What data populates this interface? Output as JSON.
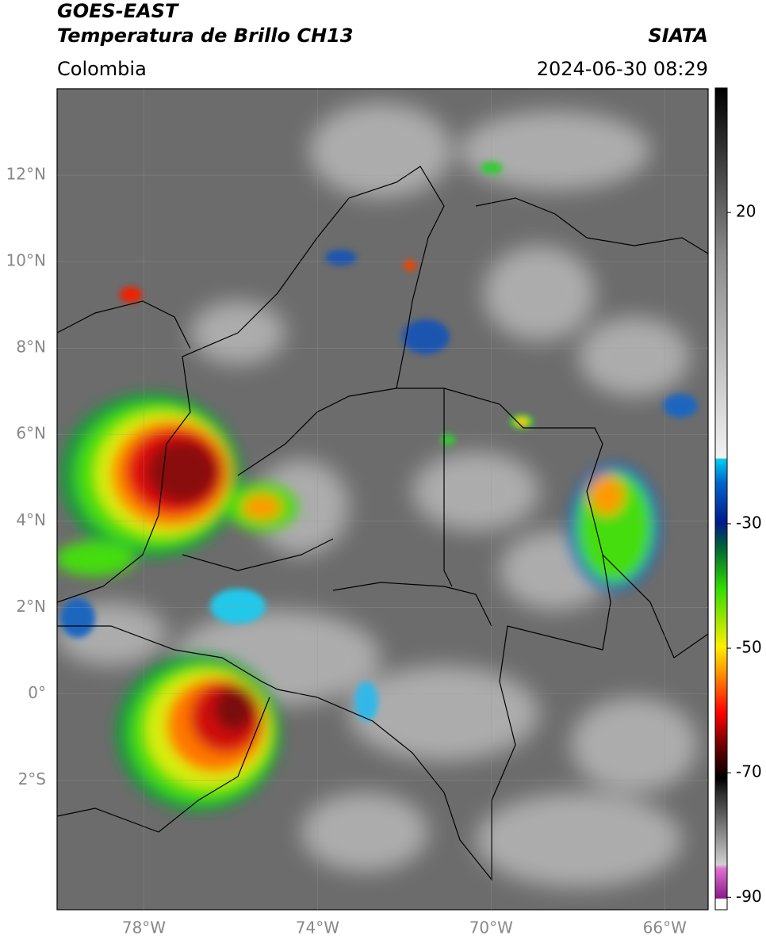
{
  "header": {
    "title": "GOES-EAST",
    "subtitle": "Temperatura de Brillo CH13",
    "source": "SIATA",
    "region": "Colombia",
    "timestamp": "2024-06-30 08:29"
  },
  "map": {
    "xlim": [
      -80,
      -65
    ],
    "ylim": [
      -5,
      14
    ],
    "xticks": [
      {
        "value": -78,
        "label": "78°W"
      },
      {
        "value": -74,
        "label": "74°W"
      },
      {
        "value": -70,
        "label": "70°W"
      },
      {
        "value": -66,
        "label": "66°W"
      }
    ],
    "yticks": [
      {
        "value": 12,
        "label": "12°N"
      },
      {
        "value": 10,
        "label": "10°N"
      },
      {
        "value": 8,
        "label": "8°N"
      },
      {
        "value": 6,
        "label": "6°N"
      },
      {
        "value": 4,
        "label": "4°N"
      },
      {
        "value": 2,
        "label": "2°N"
      },
      {
        "value": 0,
        "label": "0°"
      },
      {
        "value": -2,
        "label": "2°S"
      }
    ],
    "grid": true
  },
  "colorbar": {
    "lim": [
      -92,
      40
    ],
    "ticks": [
      20,
      -30,
      -50,
      -70,
      -90
    ]
  }
}
